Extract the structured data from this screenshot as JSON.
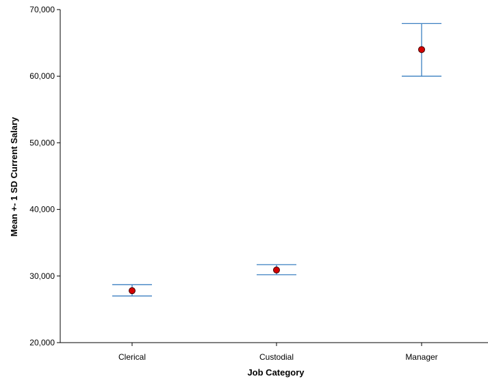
{
  "chart_data": {
    "type": "scatter",
    "title": "",
    "xlabel": "Job Category",
    "ylabel": "Mean +- 1 SD Current Salary",
    "categories": [
      "Clerical",
      "Custodial",
      "Manager"
    ],
    "y_ticks": [
      "20,000",
      "30,000",
      "40,000",
      "50,000",
      "60,000",
      "70,000"
    ],
    "ylim": [
      20000,
      70000
    ],
    "series": [
      {
        "values": [
          27800,
          30900,
          64000
        ],
        "upper": [
          28700,
          31700,
          67900
        ],
        "lower": [
          27000,
          30200,
          60000
        ]
      }
    ],
    "grid": false,
    "colors": {
      "errorbar": "#3a7fc1",
      "marker_fill": "#d40000",
      "marker_stroke": "#400000",
      "axis": "#000000"
    }
  }
}
